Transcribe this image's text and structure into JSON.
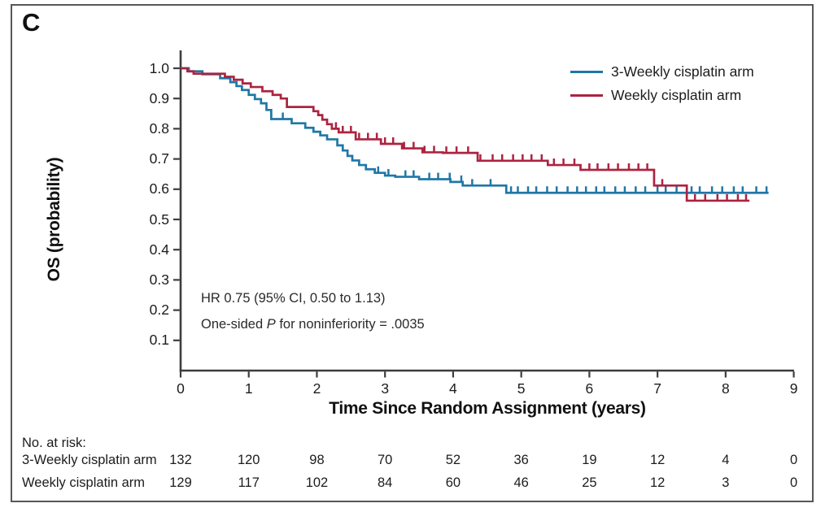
{
  "panel_label": "C",
  "chart_data": {
    "type": "line",
    "subtype": "kaplan_meier_step",
    "title": "",
    "xlabel": "Time Since Random Assignment (years)",
    "ylabel": "OS (probability)",
    "xlim": [
      0,
      9
    ],
    "ylim": [
      0,
      1.05
    ],
    "xticks": [
      0,
      1,
      2,
      3,
      4,
      5,
      6,
      7,
      8,
      9
    ],
    "yticks": [
      0.1,
      0.2,
      0.3,
      0.4,
      0.5,
      0.6,
      0.7,
      0.8,
      0.9,
      1.0
    ],
    "grid": false,
    "axis_color": "#3d3d3f",
    "legend": {
      "position": "top-right",
      "entries": [
        {
          "label": "3-Weekly cisplatin arm",
          "color": "#1F77A6"
        },
        {
          "label": "Weekly cisplatin arm",
          "color": "#AC2340"
        }
      ]
    },
    "series": [
      {
        "name": "3-Weekly cisplatin arm",
        "color": "#1F77A6",
        "steps": [
          [
            0,
            1.0
          ],
          [
            0.12,
            0.99
          ],
          [
            0.32,
            0.98
          ],
          [
            0.58,
            0.967
          ],
          [
            0.73,
            0.954
          ],
          [
            0.82,
            0.941
          ],
          [
            0.9,
            0.928
          ],
          [
            1.0,
            0.912
          ],
          [
            1.09,
            0.898
          ],
          [
            1.18,
            0.884
          ],
          [
            1.26,
            0.862
          ],
          [
            1.33,
            0.832
          ],
          [
            1.63,
            0.818
          ],
          [
            1.83,
            0.803
          ],
          [
            1.95,
            0.79
          ],
          [
            2.05,
            0.778
          ],
          [
            2.15,
            0.765
          ],
          [
            2.3,
            0.745
          ],
          [
            2.38,
            0.728
          ],
          [
            2.45,
            0.71
          ],
          [
            2.52,
            0.695
          ],
          [
            2.62,
            0.68
          ],
          [
            2.72,
            0.666
          ],
          [
            2.85,
            0.654
          ],
          [
            3.0,
            0.645
          ],
          [
            3.15,
            0.641
          ],
          [
            3.5,
            0.633
          ],
          [
            3.96,
            0.624
          ],
          [
            4.14,
            0.612
          ],
          [
            4.78,
            0.588
          ],
          [
            8.63,
            0.588
          ]
        ],
        "censor_times": [
          1.5,
          2.9,
          3.05,
          3.3,
          3.42,
          3.65,
          3.78,
          3.95,
          4.12,
          4.28,
          4.55,
          4.85,
          4.95,
          5.1,
          5.22,
          5.38,
          5.52,
          5.68,
          5.82,
          5.95,
          6.1,
          6.22,
          6.38,
          6.52,
          6.68,
          6.82,
          7.0,
          7.12,
          7.28,
          7.5,
          7.62,
          7.8,
          7.95,
          8.12,
          8.25,
          8.45,
          8.6
        ]
      },
      {
        "name": "Weekly cisplatin arm",
        "color": "#AC2340",
        "steps": [
          [
            0,
            1.0
          ],
          [
            0.1,
            0.99
          ],
          [
            0.19,
            0.982
          ],
          [
            0.65,
            0.972
          ],
          [
            0.78,
            0.962
          ],
          [
            0.91,
            0.95
          ],
          [
            1.03,
            0.938
          ],
          [
            1.2,
            0.924
          ],
          [
            1.35,
            0.912
          ],
          [
            1.47,
            0.9
          ],
          [
            1.56,
            0.872
          ],
          [
            1.95,
            0.858
          ],
          [
            2.02,
            0.845
          ],
          [
            2.08,
            0.83
          ],
          [
            2.15,
            0.815
          ],
          [
            2.22,
            0.8
          ],
          [
            2.32,
            0.788
          ],
          [
            2.57,
            0.765
          ],
          [
            2.94,
            0.75
          ],
          [
            3.25,
            0.735
          ],
          [
            3.55,
            0.722
          ],
          [
            3.85,
            0.72
          ],
          [
            4.36,
            0.694
          ],
          [
            5.39,
            0.68
          ],
          [
            5.87,
            0.664
          ],
          [
            6.95,
            0.612
          ],
          [
            7.43,
            0.562
          ],
          [
            8.35,
            0.562
          ]
        ],
        "censor_times": [
          2.28,
          2.38,
          2.5,
          2.62,
          2.75,
          2.88,
          3.0,
          3.12,
          3.28,
          3.42,
          3.58,
          3.72,
          3.9,
          4.05,
          4.22,
          4.4,
          4.58,
          4.72,
          4.88,
          5.02,
          5.15,
          5.3,
          5.48,
          5.62,
          5.78,
          6.0,
          6.12,
          6.28,
          6.42,
          6.58,
          6.72,
          6.85,
          7.07,
          7.55,
          7.7,
          7.88,
          8.02,
          8.18,
          8.3
        ]
      }
    ],
    "annotation": {
      "line1": "HR 0.75 (95% CI, 0.50 to 1.13)",
      "line2_prefix": "One-sided ",
      "line2_italic": "P",
      "line2_suffix": " for noninferiority = .0035"
    },
    "risk_table": {
      "title": "No. at risk:",
      "rows": [
        {
          "label": "3-Weekly cisplatin arm",
          "values": [
            132,
            120,
            98,
            70,
            52,
            36,
            19,
            12,
            4,
            0
          ]
        },
        {
          "label": "Weekly cisplatin arm",
          "values": [
            129,
            117,
            102,
            84,
            60,
            46,
            25,
            12,
            3,
            0
          ]
        }
      ]
    }
  }
}
